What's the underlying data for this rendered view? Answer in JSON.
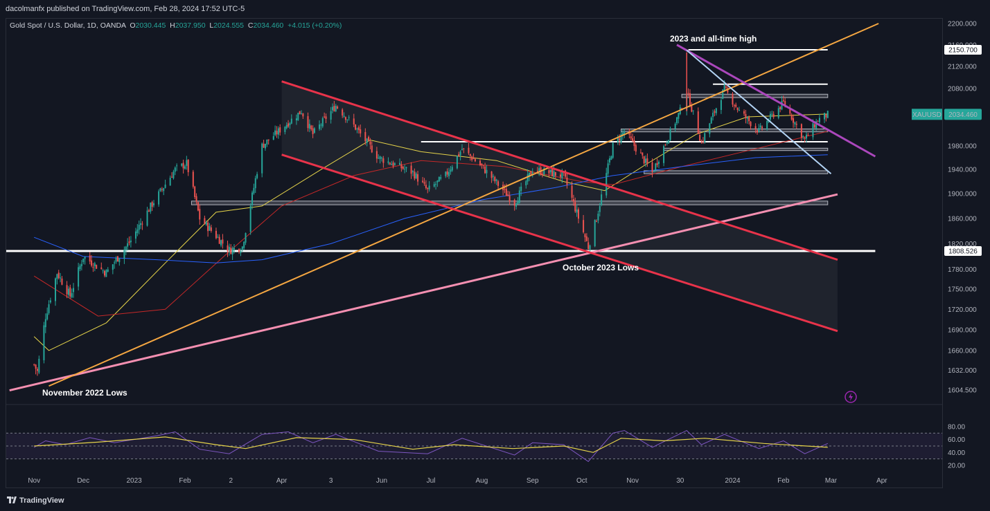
{
  "header": {
    "publish_text": "dacolmanfx published on TradingView.com, Feb 28, 2024 17:52 UTC-5",
    "symbol": "Gold Spot / U.S. Dollar, 1D, OANDA",
    "open_label": "O",
    "open": "2030.445",
    "high_label": "H",
    "high": "2037.950",
    "low_label": "L",
    "low": "2024.555",
    "close_label": "C",
    "close": "2034.460",
    "change": "+4.015 (+0.20%)"
  },
  "footer": {
    "brand": "TradingView"
  },
  "colors": {
    "background": "#131722",
    "candle_up": "#26a69a",
    "candle_down": "#ef5350",
    "channel_red": "#e8334a",
    "trend_orange": "#f5a742",
    "trend_pink": "#f48fb1",
    "trend_purple": "#ab47bc",
    "trend_light_blue": "#b3d4f5",
    "ma_yellow": "#e6d44a",
    "ma_red": "#c62828",
    "ma_blue": "#2962ff",
    "rsi_line": "#7e57c2",
    "rsi_ma": "#e6d44a"
  },
  "chart_data": [
    {
      "type": "candlestick",
      "symbol": "XAUUSD",
      "title": "Gold Spot / U.S. Dollar, 1D, OANDA",
      "x_tick_labels": [
        "Nov",
        "Dec",
        "2023",
        "Feb",
        "2",
        "Apr",
        "3",
        "Jun",
        "Jul",
        "Aug",
        "Sep",
        "Oct",
        "Nov",
        "30",
        "2024",
        "Feb",
        "Mar",
        "Apr"
      ],
      "y_tick_labels": [
        "2200.000",
        "2160.000",
        "2120.000",
        "2080.000",
        "2040.000",
        "1980.000",
        "1940.000",
        "1900.000",
        "1860.000",
        "1820.000",
        "1780.000",
        "1750.000",
        "1720.000",
        "1690.000",
        "1660.000",
        "1632.000",
        "1604.500"
      ],
      "last_price": {
        "label": "XAUUSD",
        "value": "2034.460"
      },
      "price_tags": [
        {
          "value": "2150.700"
        },
        {
          "value": "1808.526"
        }
      ],
      "annotations": [
        {
          "text": "2023 and all-time high"
        },
        {
          "text": "October 2023 Lows"
        },
        {
          "text": "November 2022 Lows"
        }
      ],
      "price_path": [
        [
          "2022-11-01",
          1640
        ],
        [
          "2022-11-03",
          1630
        ],
        [
          "2022-11-08",
          1710
        ],
        [
          "2022-11-15",
          1775
        ],
        [
          "2022-11-23",
          1740
        ],
        [
          "2022-12-01",
          1800
        ],
        [
          "2022-12-15",
          1775
        ],
        [
          "2022-12-30",
          1825
        ],
        [
          "2023-01-10",
          1875
        ],
        [
          "2023-01-26",
          1940
        ],
        [
          "2023-02-02",
          1950
        ],
        [
          "2023-02-10",
          1860
        ],
        [
          "2023-02-28",
          1810
        ],
        [
          "2023-03-08",
          1815
        ],
        [
          "2023-03-15",
          1910
        ],
        [
          "2023-03-20",
          1980
        ],
        [
          "2023-04-05",
          2020
        ],
        [
          "2023-04-13",
          2040
        ],
        [
          "2023-04-20",
          2000
        ],
        [
          "2023-05-04",
          2050
        ],
        [
          "2023-05-15",
          2015
        ],
        [
          "2023-05-30",
          1960
        ],
        [
          "2023-06-20",
          1935
        ],
        [
          "2023-06-29",
          1905
        ],
        [
          "2023-07-10",
          1930
        ],
        [
          "2023-07-20",
          1975
        ],
        [
          "2023-08-01",
          1945
        ],
        [
          "2023-08-21",
          1885
        ],
        [
          "2023-09-01",
          1940
        ],
        [
          "2023-09-20",
          1930
        ],
        [
          "2023-10-05",
          1815
        ],
        [
          "2023-10-10",
          1860
        ],
        [
          "2023-10-20",
          1980
        ],
        [
          "2023-10-27",
          2005
        ],
        [
          "2023-11-13",
          1935
        ],
        [
          "2023-11-30",
          2040
        ],
        [
          "2023-12-04",
          2075
        ],
        [
          "2023-12-13",
          1985
        ],
        [
          "2023-12-27",
          2080
        ],
        [
          "2024-01-05",
          2040
        ],
        [
          "2024-01-17",
          2005
        ],
        [
          "2024-02-01",
          2055
        ],
        [
          "2024-02-14",
          1990
        ],
        [
          "2024-02-22",
          2025
        ],
        [
          "2024-02-28",
          2034
        ]
      ],
      "moving_averages": [
        {
          "color_key": "ma_yellow",
          "path": [
            [
              "2022-11-01",
              1680
            ],
            [
              "2022-11-10",
              1660
            ],
            [
              "2022-12-15",
              1700
            ],
            [
              "2023-01-20",
              1790
            ],
            [
              "2023-02-20",
              1870
            ],
            [
              "2023-03-20",
              1880
            ],
            [
              "2023-04-25",
              1940
            ],
            [
              "2023-05-25",
              1990
            ],
            [
              "2023-06-25",
              1970
            ],
            [
              "2023-08-10",
              1955
            ],
            [
              "2023-09-20",
              1920
            ],
            [
              "2023-10-15",
              1905
            ],
            [
              "2023-11-10",
              1950
            ],
            [
              "2023-12-10",
              2000
            ],
            [
              "2024-01-10",
              2030
            ],
            [
              "2024-02-28",
              2035
            ]
          ]
        },
        {
          "color_key": "ma_red",
          "path": [
            [
              "2022-11-01",
              1770
            ],
            [
              "2022-12-10",
              1710
            ],
            [
              "2023-01-20",
              1720
            ],
            [
              "2023-03-01",
              1810
            ],
            [
              "2023-04-01",
              1880
            ],
            [
              "2023-05-15",
              1930
            ],
            [
              "2023-06-25",
              1955
            ],
            [
              "2023-08-15",
              1945
            ],
            [
              "2023-10-01",
              1920
            ],
            [
              "2023-10-20",
              1915
            ],
            [
              "2023-12-01",
              1945
            ],
            [
              "2024-01-15",
              1975
            ],
            [
              "2024-02-28",
              2005
            ]
          ]
        },
        {
          "color_key": "ma_blue",
          "path": [
            [
              "2022-11-01",
              1830
            ],
            [
              "2022-12-01",
              1800
            ],
            [
              "2023-01-15",
              1795
            ],
            [
              "2023-02-20",
              1790
            ],
            [
              "2023-03-20",
              1795
            ],
            [
              "2023-05-01",
              1820
            ],
            [
              "2023-06-15",
              1860
            ],
            [
              "2023-08-01",
              1890
            ],
            [
              "2023-09-15",
              1910
            ],
            [
              "2023-10-20",
              1930
            ],
            [
              "2023-12-01",
              1945
            ],
            [
              "2024-01-15",
              1960
            ],
            [
              "2024-02-28",
              1965
            ]
          ]
        }
      ]
    },
    {
      "type": "line",
      "title": "RSI",
      "y_tick_labels": [
        "80.00",
        "60.00",
        "40.00",
        "20.00"
      ],
      "ylim": [
        15,
        85
      ],
      "bands": [
        70,
        50,
        30
      ],
      "series": [
        {
          "color_key": "rsi_line",
          "path": [
            [
              "2022-11-01",
              48
            ],
            [
              "2022-11-08",
              58
            ],
            [
              "2022-11-20",
              52
            ],
            [
              "2022-12-05",
              63
            ],
            [
              "2022-12-20",
              55
            ],
            [
              "2023-01-15",
              66
            ],
            [
              "2023-01-26",
              72
            ],
            [
              "2023-02-10",
              45
            ],
            [
              "2023-02-28",
              38
            ],
            [
              "2023-03-20",
              68
            ],
            [
              "2023-04-05",
              72
            ],
            [
              "2023-04-20",
              55
            ],
            [
              "2023-05-04",
              68
            ],
            [
              "2023-05-30",
              42
            ],
            [
              "2023-06-29",
              38
            ],
            [
              "2023-07-20",
              62
            ],
            [
              "2023-08-21",
              36
            ],
            [
              "2023-09-01",
              55
            ],
            [
              "2023-09-20",
              52
            ],
            [
              "2023-10-05",
              26
            ],
            [
              "2023-10-20",
              70
            ],
            [
              "2023-10-27",
              74
            ],
            [
              "2023-11-13",
              48
            ],
            [
              "2023-12-04",
              74
            ],
            [
              "2023-12-13",
              52
            ],
            [
              "2023-12-27",
              68
            ],
            [
              "2024-01-17",
              46
            ],
            [
              "2024-02-01",
              58
            ],
            [
              "2024-02-14",
              38
            ],
            [
              "2024-02-28",
              54
            ]
          ]
        },
        {
          "color_key": "rsi_ma",
          "path": [
            [
              "2022-11-01",
              50
            ],
            [
              "2022-12-10",
              56
            ],
            [
              "2023-01-20",
              64
            ],
            [
              "2023-02-20",
              52
            ],
            [
              "2023-03-10",
              46
            ],
            [
              "2023-04-10",
              63
            ],
            [
              "2023-05-15",
              60
            ],
            [
              "2023-06-20",
              45
            ],
            [
              "2023-07-15",
              52
            ],
            [
              "2023-08-20",
              46
            ],
            [
              "2023-09-20",
              50
            ],
            [
              "2023-10-08",
              40
            ],
            [
              "2023-10-25",
              62
            ],
            [
              "2023-11-20",
              58
            ],
            [
              "2023-12-15",
              62
            ],
            [
              "2024-01-20",
              54
            ],
            [
              "2024-02-28",
              48
            ]
          ]
        }
      ]
    }
  ]
}
